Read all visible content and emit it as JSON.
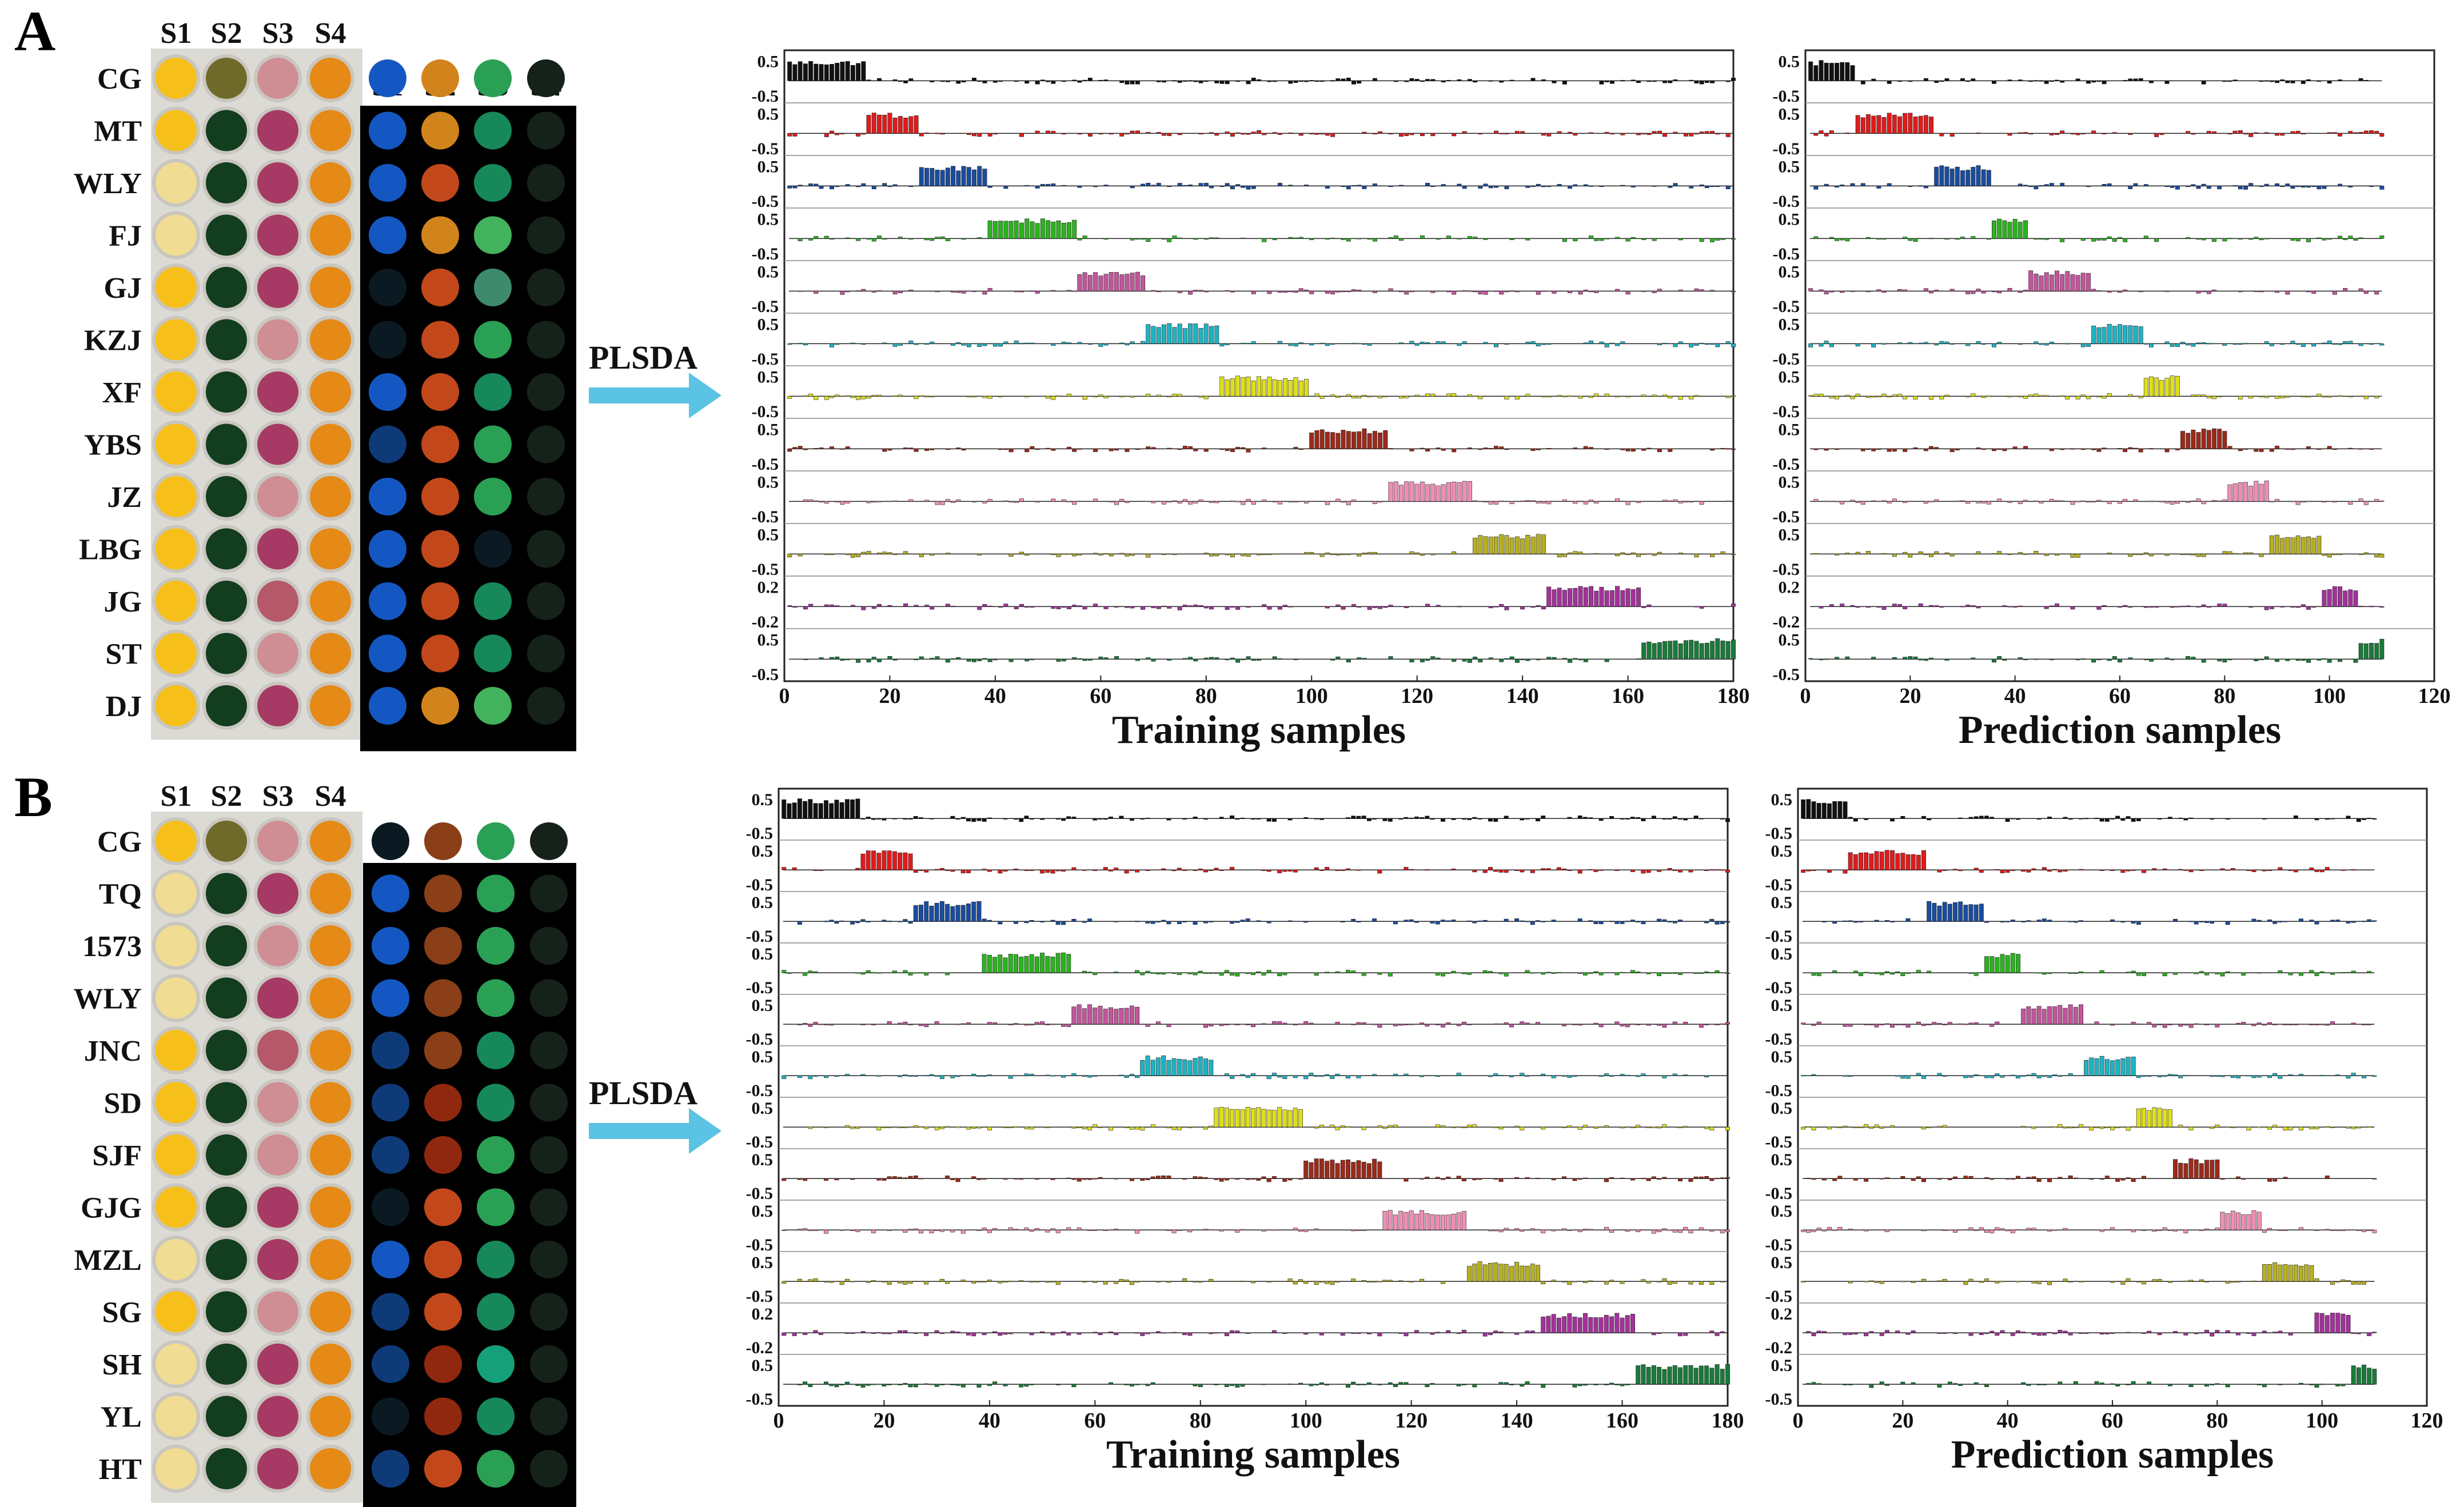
{
  "panels": [
    {
      "label": "A",
      "well_columns": [
        "S1",
        "S2",
        "S3",
        "S4"
      ],
      "fluor_columns": [
        "S1",
        "S2",
        "S3",
        "S4"
      ],
      "samples": [
        "CG",
        "MT",
        "WLY",
        "FJ",
        "GJ",
        "KZJ",
        "XF",
        "YBS",
        "JZ",
        "LBG",
        "JG",
        "ST",
        "DJ"
      ],
      "s1_tone": [
        "gold",
        "gold",
        "pale",
        "pale",
        "gold",
        "gold",
        "gold",
        "gold",
        "gold",
        "gold",
        "gold",
        "gold",
        "gold"
      ],
      "s2_tone": [
        "olive",
        "darkgreen",
        "darkgreen",
        "darkgreen",
        "darkgreen",
        "darkgreen",
        "darkgreen",
        "darkgreen",
        "darkgreen",
        "darkgreen",
        "darkgreen",
        "darkgreen",
        "darkgreen"
      ],
      "s3_tone": [
        "pink",
        "magenta",
        "magenta",
        "magenta",
        "magenta",
        "pink",
        "magenta",
        "magenta",
        "pink",
        "magenta",
        "rose",
        "pink",
        "magenta"
      ],
      "fluor_s1": [
        "blue",
        "blue",
        "blue",
        "blue",
        "dark",
        "dark",
        "blue",
        "navy",
        "blue",
        "blue",
        "blue",
        "blue",
        "blue"
      ],
      "fluor_s2": [
        "orange",
        "orange",
        "redorange",
        "orange",
        "redorange",
        "redorange",
        "redorange",
        "redorange",
        "redorange",
        "redorange",
        "redorange",
        "redorange",
        "orange"
      ],
      "fluor_s3": [
        "green",
        "teal",
        "teal",
        "lightgreen",
        "slate",
        "green",
        "teal",
        "green",
        "green",
        "dark",
        "teal",
        "teal",
        "lightgreen"
      ],
      "fluor_s4": [
        "faint",
        "faint",
        "faint",
        "faint",
        "faint",
        "faint",
        "faint",
        "faint",
        "faint",
        "faint",
        "faint",
        "faint",
        "faint"
      ],
      "arrow_label": "PLSDA",
      "charts": [
        {
          "chart_data": {
            "type": "bar",
            "n_samples": 180,
            "xlabel": "Training samples",
            "xlim": [
              0,
              180
            ],
            "xticks": [
              "0",
              "20",
              "40",
              "60",
              "80",
              "100",
              "120",
              "140",
              "160",
              "180"
            ],
            "ytick_labels": [
              [
                "0.5",
                "-0.5"
              ],
              [
                "0.5",
                "-0.5"
              ],
              [
                "0.5",
                "-0.5"
              ],
              [
                "0.5",
                "-0.5"
              ],
              [
                "0.5",
                "-0.5"
              ],
              [
                "0.5",
                "-0.5"
              ],
              [
                "0.5",
                "-0.5"
              ],
              [
                "0.5",
                "-0.5"
              ],
              [
                "0.5",
                "-0.5"
              ],
              [
                "0.5",
                "-0.5"
              ],
              [
                "0.2",
                "-0.2"
              ],
              [
                "0.5",
                "-0.5"
              ]
            ],
            "class_ranges": [
              [
                1,
                16
              ],
              [
                16,
                26
              ],
              [
                26,
                39
              ],
              [
                39,
                56
              ],
              [
                56,
                69
              ],
              [
                69,
                83
              ],
              [
                83,
                100
              ],
              [
                100,
                115
              ],
              [
                115,
                131
              ],
              [
                131,
                145
              ],
              [
                145,
                163
              ],
              [
                163,
                181
              ]
            ],
            "series_colors": [
              "#111111",
              "#e01b1b",
              "#1a4c9e",
              "#2bb31f",
              "#c2569b",
              "#1fb3c2",
              "#e0e01a",
              "#9b2a1a",
              "#ef8fb5",
              "#b7b022",
              "#a3329a",
              "#1a7a3a"
            ],
            "ylim": [
              -1.1,
              1.1
            ],
            "high_value": 0.78,
            "noise_amplitude": 0.14
          }
        },
        {
          "chart_data": {
            "type": "bar",
            "n_samples": 110,
            "xlabel": "Prediction samples",
            "xlim": [
              0,
              120
            ],
            "xticks": [
              "0",
              "20",
              "40",
              "60",
              "80",
              "100",
              "120"
            ],
            "ytick_labels": [
              [
                "0.5",
                "-0.5"
              ],
              [
                "0.5",
                "-0.5"
              ],
              [
                "0.5",
                "-0.5"
              ],
              [
                "0.5",
                "-0.5"
              ],
              [
                "0.5",
                "-0.5"
              ],
              [
                "0.5",
                "-0.5"
              ],
              [
                "0.5",
                "-0.5"
              ],
              [
                "0.5",
                "-0.5"
              ],
              [
                "0.5",
                "-0.5"
              ],
              [
                "0.5",
                "-0.5"
              ],
              [
                "0.2",
                "-0.2"
              ],
              [
                "0.5",
                "-0.5"
              ]
            ],
            "class_ranges": [
              [
                1,
                10
              ],
              [
                10,
                25
              ],
              [
                25,
                36
              ],
              [
                36,
                43
              ],
              [
                43,
                55
              ],
              [
                55,
                65
              ],
              [
                65,
                72
              ],
              [
                72,
                81
              ],
              [
                81,
                89
              ],
              [
                89,
                99
              ],
              [
                99,
                106
              ],
              [
                106,
                111
              ]
            ],
            "series_colors": [
              "#111111",
              "#e01b1b",
              "#1a4c9e",
              "#2bb31f",
              "#c2569b",
              "#1fb3c2",
              "#e0e01a",
              "#9b2a1a",
              "#ef8fb5",
              "#b7b022",
              "#a3329a",
              "#1a7a3a"
            ],
            "ylim": [
              -1.1,
              1.1
            ],
            "high_value": 0.78,
            "noise_amplitude": 0.14
          }
        }
      ]
    },
    {
      "label": "B",
      "well_columns": [
        "S1",
        "S2",
        "S3",
        "S4"
      ],
      "fluor_columns": [
        "S1",
        "S2",
        "S3",
        "S4"
      ],
      "samples": [
        "CG",
        "TQ",
        "1573",
        "WLY",
        "JNC",
        "SD",
        "SJF",
        "GJG",
        "MZL",
        "SG",
        "SH",
        "YL",
        "HT"
      ],
      "s1_tone": [
        "gold",
        "pale",
        "pale",
        "pale",
        "gold",
        "gold",
        "gold",
        "gold",
        "pale",
        "gold",
        "pale",
        "pale",
        "pale"
      ],
      "s2_tone": [
        "olive",
        "darkgreen",
        "darkgreen",
        "darkgreen",
        "darkgreen",
        "darkgreen",
        "darkgreen",
        "darkgreen",
        "darkgreen",
        "darkgreen",
        "darkgreen",
        "darkgreen",
        "darkgreen"
      ],
      "s3_tone": [
        "pink",
        "magenta",
        "pink",
        "magenta",
        "rose",
        "pink",
        "pink",
        "magenta",
        "magenta",
        "pink",
        "magenta",
        "magenta",
        "magenta"
      ],
      "fluor_s1": [
        "dark",
        "blue",
        "blue",
        "blue",
        "navy",
        "navy",
        "navy",
        "dark",
        "blue",
        "navy",
        "navy",
        "dark",
        "navy"
      ],
      "fluor_s2": [
        "brown",
        "brown",
        "brown",
        "brown",
        "brown",
        "redbrown",
        "redbrown",
        "redorange",
        "redorange",
        "redorange",
        "redbrown",
        "redbrown",
        "redorange"
      ],
      "fluor_s3": [
        "green",
        "green",
        "green",
        "green",
        "teal",
        "teal",
        "green",
        "green",
        "teal",
        "teal",
        "tealbright",
        "teal",
        "green"
      ],
      "fluor_s4": [
        "faint",
        "faint",
        "faint",
        "faint",
        "faint",
        "faint",
        "faint",
        "faint",
        "faint",
        "faint",
        "faint",
        "faint",
        "faint"
      ],
      "arrow_label": "PLSDA",
      "charts": [
        {
          "chart_data": {
            "type": "bar",
            "n_samples": 180,
            "xlabel": "Training samples",
            "xlim": [
              0,
              180
            ],
            "xticks": [
              "0",
              "20",
              "40",
              "60",
              "80",
              "100",
              "120",
              "140",
              "160",
              "180"
            ],
            "ytick_labels": [
              [
                "0.5",
                "-0.5"
              ],
              [
                "0.5",
                "-0.5"
              ],
              [
                "0.5",
                "-0.5"
              ],
              [
                "0.5",
                "-0.5"
              ],
              [
                "0.5",
                "-0.5"
              ],
              [
                "0.5",
                "-0.5"
              ],
              [
                "0.5",
                "-0.5"
              ],
              [
                "0.5",
                "-0.5"
              ],
              [
                "0.5",
                "-0.5"
              ],
              [
                "0.5",
                "-0.5"
              ],
              [
                "0.2",
                "-0.2"
              ],
              [
                "0.5",
                "-0.5"
              ]
            ],
            "class_ranges": [
              [
                1,
                16
              ],
              [
                16,
                26
              ],
              [
                26,
                39
              ],
              [
                39,
                56
              ],
              [
                56,
                69
              ],
              [
                69,
                83
              ],
              [
                83,
                100
              ],
              [
                100,
                115
              ],
              [
                115,
                131
              ],
              [
                131,
                145
              ],
              [
                145,
                163
              ],
              [
                163,
                181
              ]
            ],
            "series_colors": [
              "#111111",
              "#e01b1b",
              "#1a4c9e",
              "#2bb31f",
              "#c2569b",
              "#1fb3c2",
              "#e0e01a",
              "#9b2a1a",
              "#ef8fb5",
              "#b7b022",
              "#a3329a",
              "#1a7a3a"
            ],
            "ylim": [
              -1.1,
              1.1
            ],
            "high_value": 0.78,
            "noise_amplitude": 0.14
          }
        },
        {
          "chart_data": {
            "type": "bar",
            "n_samples": 110,
            "xlabel": "Prediction samples",
            "xlim": [
              0,
              120
            ],
            "xticks": [
              "0",
              "20",
              "40",
              "60",
              "80",
              "100",
              "120"
            ],
            "ytick_labels": [
              [
                "0.5",
                "-0.5"
              ],
              [
                "0.5",
                "-0.5"
              ],
              [
                "0.5",
                "-0.5"
              ],
              [
                "0.5",
                "-0.5"
              ],
              [
                "0.5",
                "-0.5"
              ],
              [
                "0.5",
                "-0.5"
              ],
              [
                "0.5",
                "-0.5"
              ],
              [
                "0.5",
                "-0.5"
              ],
              [
                "0.5",
                "-0.5"
              ],
              [
                "0.5",
                "-0.5"
              ],
              [
                "0.2",
                "-0.2"
              ],
              [
                "0.5",
                "-0.5"
              ]
            ],
            "class_ranges": [
              [
                1,
                10
              ],
              [
                10,
                25
              ],
              [
                25,
                36
              ],
              [
                36,
                43
              ],
              [
                43,
                55
              ],
              [
                55,
                65
              ],
              [
                65,
                72
              ],
              [
                72,
                81
              ],
              [
                81,
                89
              ],
              [
                89,
                99
              ],
              [
                99,
                106
              ],
              [
                106,
                111
              ]
            ],
            "series_colors": [
              "#111111",
              "#e01b1b",
              "#1a4c9e",
              "#2bb31f",
              "#c2569b",
              "#1fb3c2",
              "#e0e01a",
              "#9b2a1a",
              "#ef8fb5",
              "#b7b022",
              "#a3329a",
              "#1a7a3a"
            ],
            "ylim": [
              -1.1,
              1.1
            ],
            "high_value": 0.78,
            "noise_amplitude": 0.14
          }
        }
      ]
    }
  ],
  "palette": {
    "well": {
      "gold": "#f7bf1a",
      "pale": "#f0dc92",
      "olive": "#6f6a2a",
      "darkgreen": "#123d1e",
      "pink": "#cf8e94",
      "magenta": "#a63a64",
      "rose": "#b5586a",
      "orange": "#e58a16"
    },
    "fluor": {
      "blue": "#1457c2",
      "navy": "#0e3a78",
      "dark": "#0b1a22",
      "orange": "#d2841c",
      "redorange": "#c2481c",
      "brown": "#8a3f18",
      "redbrown": "#90280f",
      "green": "#2aa055",
      "teal": "#17885a",
      "tealbright": "#16a07a",
      "lightgreen": "#43b25c",
      "slate": "#3e8a6c",
      "faint": "#15221a"
    },
    "arrow": "#5bc3e3"
  }
}
